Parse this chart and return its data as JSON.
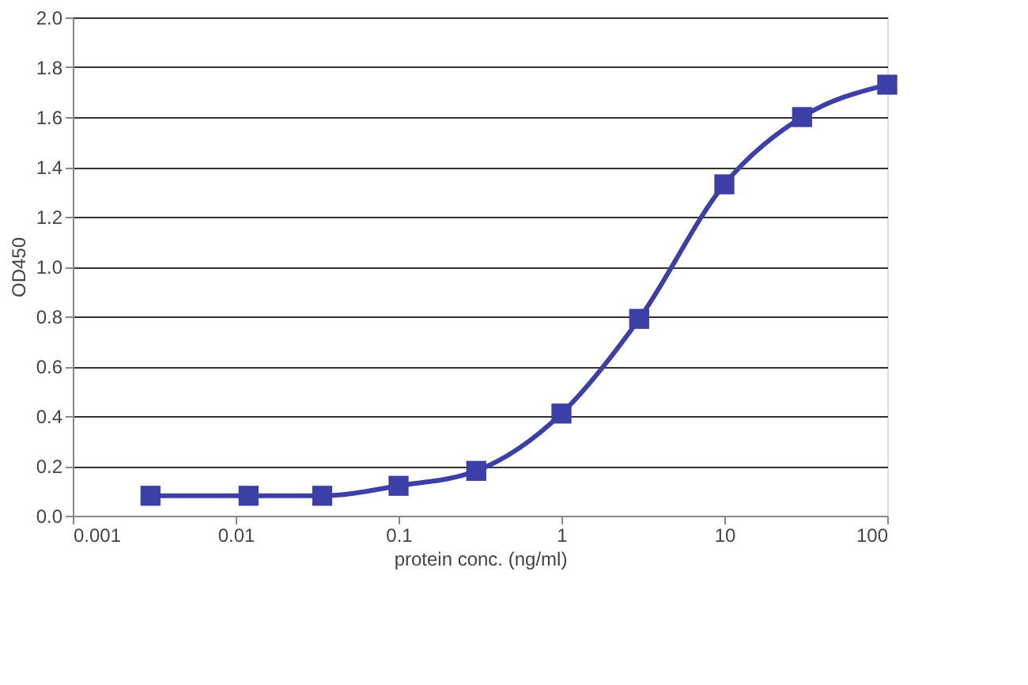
{
  "chart_data": {
    "type": "line",
    "xlabel": "protein conc. (ng/ml)",
    "ylabel": "OD450",
    "log": "x",
    "x": [
      0.003,
      0.012,
      0.034,
      0.1,
      0.3,
      1,
      3,
      10,
      30,
      100
    ],
    "series": [
      {
        "color": "#3b3fa6",
        "values": [
          0.08,
          0.08,
          0.08,
          0.12,
          0.18,
          0.41,
          0.79,
          1.33,
          1.6,
          1.73
        ]
      }
    ],
    "xlim": [
      0.001,
      100
    ],
    "xticks": [
      0.001,
      0.01,
      0.1,
      1,
      10,
      100
    ],
    "ylim": [
      0,
      2.0
    ],
    "yticks": [
      {
        "value": 0,
        "label": "0.0"
      },
      {
        "value": 0.2,
        "label": "0.2"
      },
      {
        "value": 0.4,
        "label": "0.4"
      },
      {
        "value": 0.6,
        "label": "0.6"
      },
      {
        "value": 0.8,
        "label": "0.8"
      },
      {
        "value": 1.0,
        "label": "1.0"
      },
      {
        "value": 1.2,
        "label": "1.2"
      },
      {
        "value": 1.4,
        "label": "1.4"
      },
      {
        "value": 1.6,
        "label": "1.6"
      },
      {
        "value": 1.8,
        "label": "1.8"
      },
      {
        "value": 2.0,
        "label": "2.0"
      }
    ],
    "grid": "y",
    "marker": "square",
    "line_style": "solid"
  }
}
